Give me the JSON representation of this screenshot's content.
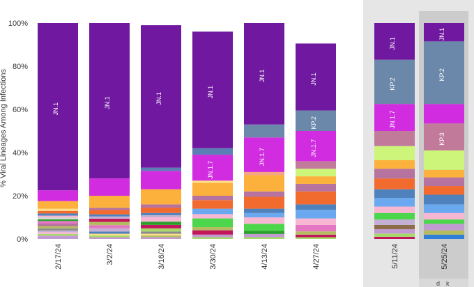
{
  "chart_data": {
    "type": "bar",
    "stacked": true,
    "ylabel": "% Viral Lineages Among Infections",
    "y_ticks": [
      "0%",
      "20%",
      "40%",
      "60%",
      "80%",
      "100%"
    ],
    "ylim": [
      0,
      100
    ],
    "shaded_from_index": 6,
    "highlight_index": 7,
    "corner_text": [
      "d",
      "k"
    ],
    "categories": [
      "2/17/24",
      "3/2/24",
      "3/16/24",
      "3/30/24",
      "4/13/24",
      "4/27/24",
      "5/11/24",
      "5/25/24"
    ],
    "bars": [
      {
        "segments": [
          {
            "value": 1.5,
            "color": "#c39bd3"
          },
          {
            "value": 0.8,
            "color": "#a6d96a"
          },
          {
            "value": 0.8,
            "color": "#f7b6d2"
          },
          {
            "value": 0.8,
            "color": "#c5b0d5"
          },
          {
            "value": 1.0,
            "color": "#8c8c8c"
          },
          {
            "value": 1.0,
            "color": "#b5bd61"
          },
          {
            "value": 1.2,
            "color": "#b6739f"
          },
          {
            "value": 1.2,
            "color": "#e377c2"
          },
          {
            "value": 0.8,
            "color": "#2ca02c"
          },
          {
            "value": 0.9,
            "color": "#d6d6d6"
          },
          {
            "value": 0.8,
            "color": "#f7b6d2"
          },
          {
            "value": 1.0,
            "color": "#4f81bd"
          },
          {
            "value": 1.2,
            "color": "#f26b2e"
          },
          {
            "value": 1.0,
            "color": "#ffe08a"
          },
          {
            "value": 3.5,
            "color": "#fbb13c"
          },
          {
            "value": 5.0,
            "color": "#d12cdf"
          },
          {
            "value": 77.5,
            "color": "#7019a0",
            "label": "JN.1"
          }
        ]
      },
      {
        "segments": [
          {
            "value": 0.8,
            "color": "#c39bd3"
          },
          {
            "value": 0.8,
            "color": "#a6d96a"
          },
          {
            "value": 0.8,
            "color": "#ffe08a"
          },
          {
            "value": 1.0,
            "color": "#4f81bd"
          },
          {
            "value": 1.5,
            "color": "#c5b0d5"
          },
          {
            "value": 1.5,
            "color": "#e377c2"
          },
          {
            "value": 1.5,
            "color": "#b5bd61"
          },
          {
            "value": 1.5,
            "color": "#c2185b"
          },
          {
            "value": 1.0,
            "color": "#c5b0d5"
          },
          {
            "value": 1.0,
            "color": "#4f81bd"
          },
          {
            "value": 2.0,
            "color": "#f26b2e"
          },
          {
            "value": 1.0,
            "color": "#b6739f"
          },
          {
            "value": 5.6,
            "color": "#fbb13c"
          },
          {
            "value": 8.0,
            "color": "#d12cdf"
          },
          {
            "value": 72.0,
            "color": "#7019a0",
            "label": "JN.1"
          }
        ]
      },
      {
        "segments": [
          {
            "value": 0.8,
            "color": "#c39bd3"
          },
          {
            "value": 0.8,
            "color": "#b5bd61"
          },
          {
            "value": 0.8,
            "color": "#ffe08a"
          },
          {
            "value": 1.0,
            "color": "#8c8c8c"
          },
          {
            "value": 1.5,
            "color": "#a6d96a"
          },
          {
            "value": 1.6,
            "color": "#c2185b"
          },
          {
            "value": 1.5,
            "color": "#2ca02c"
          },
          {
            "value": 2.0,
            "color": "#f7b6d2"
          },
          {
            "value": 1.0,
            "color": "#c5b0d5"
          },
          {
            "value": 1.0,
            "color": "#4f81bd"
          },
          {
            "value": 2.5,
            "color": "#f26b2e"
          },
          {
            "value": 1.5,
            "color": "#b6739f"
          },
          {
            "value": 7.0,
            "color": "#fbb13c"
          },
          {
            "value": 8.5,
            "color": "#d12cdf"
          },
          {
            "value": 1.5,
            "color": "#5b7fb5"
          },
          {
            "value": 66.0,
            "color": "#7019a0",
            "label": "JN.1"
          }
        ]
      },
      {
        "segments": [
          {
            "value": 0.8,
            "color": "#a6d96a"
          },
          {
            "value": 1.2,
            "color": "#c39bd3"
          },
          {
            "value": 2.0,
            "color": "#c2185b"
          },
          {
            "value": 1.5,
            "color": "#b5bd61"
          },
          {
            "value": 4.0,
            "color": "#4cd64c"
          },
          {
            "value": 2.0,
            "color": "#f7b6d2"
          },
          {
            "value": 2.5,
            "color": "#6aa8f0"
          },
          {
            "value": 4.0,
            "color": "#f26b2e"
          },
          {
            "value": 2.0,
            "color": "#b6739f"
          },
          {
            "value": 6.0,
            "color": "#fbb13c"
          },
          {
            "value": 1.0,
            "color": "#ffe08a"
          },
          {
            "value": 12.0,
            "color": "#d12cdf",
            "label": "JN.1.7"
          },
          {
            "value": 3.0,
            "color": "#5b7fb5"
          },
          {
            "value": 54.0,
            "color": "#7019a0",
            "label": "JN.1"
          }
        ]
      },
      {
        "segments": [
          {
            "value": 0.8,
            "color": "#a6d96a"
          },
          {
            "value": 1.5,
            "color": "#c39bd3"
          },
          {
            "value": 1.5,
            "color": "#2ca02c"
          },
          {
            "value": 3.2,
            "color": "#4cd64c"
          },
          {
            "value": 3.0,
            "color": "#f7b6d2"
          },
          {
            "value": 2.0,
            "color": "#6aa8f0"
          },
          {
            "value": 2.0,
            "color": "#4f81bd"
          },
          {
            "value": 5.5,
            "color": "#f26b2e"
          },
          {
            "value": 2.5,
            "color": "#b6739f"
          },
          {
            "value": 7.5,
            "color": "#fbb13c"
          },
          {
            "value": 1.5,
            "color": "#f4a582"
          },
          {
            "value": 16.0,
            "color": "#d12cdf",
            "label": "JN.1.7"
          },
          {
            "value": 6.0,
            "color": "#6b87aa"
          },
          {
            "value": 47.0,
            "color": "#7019a0",
            "label": "JN.1"
          }
        ]
      },
      {
        "segments": [
          {
            "value": 0.8,
            "color": "#a6d96a"
          },
          {
            "value": 1.2,
            "color": "#c2185b"
          },
          {
            "value": 1.5,
            "color": "#b5bd61"
          },
          {
            "value": 3.0,
            "color": "#e377c2"
          },
          {
            "value": 3.0,
            "color": "#f7b6d2"
          },
          {
            "value": 4.0,
            "color": "#6aa8f0"
          },
          {
            "value": 2.5,
            "color": "#4f81bd"
          },
          {
            "value": 6.0,
            "color": "#f26b2e"
          },
          {
            "value": 3.5,
            "color": "#b6739f"
          },
          {
            "value": 3.5,
            "color": "#fbb13c"
          },
          {
            "value": 3.5,
            "color": "#ccf57a"
          },
          {
            "value": 3.5,
            "color": "#c27a9b"
          },
          {
            "value": 14.0,
            "color": "#d12cdf",
            "label": "JN.1.7"
          },
          {
            "value": 9.5,
            "color": "#6b87aa",
            "label": "KP.2"
          },
          {
            "value": 31.0,
            "color": "#7019a0",
            "label": "JN.1"
          }
        ]
      },
      {
        "segments": [
          {
            "value": 1.0,
            "color": "#c2185b"
          },
          {
            "value": 1.5,
            "color": "#a6d96a"
          },
          {
            "value": 2.0,
            "color": "#c39bd3"
          },
          {
            "value": 2.0,
            "color": "#8b6d4a"
          },
          {
            "value": 2.5,
            "color": "#c5b0d5"
          },
          {
            "value": 3.0,
            "color": "#4cd64c"
          },
          {
            "value": 3.0,
            "color": "#f7b6d2"
          },
          {
            "value": 4.0,
            "color": "#6aa8f0"
          },
          {
            "value": 4.0,
            "color": "#4f81bd"
          },
          {
            "value": 5.0,
            "color": "#f26b2e"
          },
          {
            "value": 4.5,
            "color": "#b6739f"
          },
          {
            "value": 4.0,
            "color": "#fbb13c"
          },
          {
            "value": 6.5,
            "color": "#ccf57a"
          },
          {
            "value": 7.0,
            "color": "#c27a9b"
          },
          {
            "value": 12.5,
            "color": "#d12cdf",
            "label": "JN.1.7"
          },
          {
            "value": 20.5,
            "color": "#6b87aa",
            "label": "KP.2"
          },
          {
            "value": 17.0,
            "color": "#7019a0",
            "label": "JN.1"
          }
        ]
      },
      {
        "segments": [
          {
            "value": 2.0,
            "color": "#2f7ed8"
          },
          {
            "value": 2.0,
            "color": "#b5bd61"
          },
          {
            "value": 3.0,
            "color": "#c39bd3"
          },
          {
            "value": 2.0,
            "color": "#4cd64c"
          },
          {
            "value": 3.0,
            "color": "#f7b6d2"
          },
          {
            "value": 4.0,
            "color": "#6aa8f0"
          },
          {
            "value": 4.5,
            "color": "#4f81bd"
          },
          {
            "value": 4.0,
            "color": "#f26b2e"
          },
          {
            "value": 4.0,
            "color": "#b6739f"
          },
          {
            "value": 3.5,
            "color": "#fbb13c"
          },
          {
            "value": 9.0,
            "color": "#ccf57a"
          },
          {
            "value": 12.5,
            "color": "#c27a9b",
            "label": "KP.3"
          },
          {
            "value": 9.0,
            "color": "#d12cdf"
          },
          {
            "value": 29.0,
            "color": "#6b87aa",
            "label": "KP.2"
          },
          {
            "value": 8.5,
            "color": "#7019a0",
            "label": "JN.1"
          }
        ]
      }
    ]
  }
}
